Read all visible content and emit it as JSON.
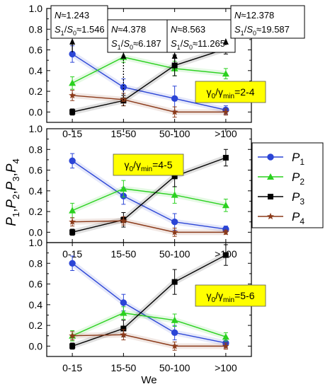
{
  "figure": {
    "ylabel": "P1,P2,P3,P4",
    "xlabel": "We",
    "background": "#ffffff"
  },
  "series_styles": [
    {
      "name": "P1",
      "color": "#2b45d6",
      "marker": "circle"
    },
    {
      "name": "P2",
      "color": "#2ad11f",
      "marker": "triangle"
    },
    {
      "name": "P3",
      "color": "#000000",
      "marker": "square"
    },
    {
      "name": "P4",
      "color": "#8b3a1a",
      "marker": "star"
    }
  ],
  "top_annotations": [
    {
      "category": "0-15",
      "N": "N≈1.243",
      "ratio": "S1/S0≈1.546"
    },
    {
      "category": "15-50",
      "N": "N≈4.378",
      "ratio": "S1/S0≈6.187"
    },
    {
      "category": "50-100",
      "N": "N≈8.563",
      "ratio": "S1/S0≈11.265"
    },
    {
      "category": ">100",
      "N": "N≈12.378",
      "ratio": "S1/S0≈19.587"
    }
  ],
  "chart_data": [
    {
      "type": "line",
      "categories": [
        "0-15",
        "15-50",
        "50-100",
        ">100"
      ],
      "ylim": [
        -0.1,
        1.0
      ],
      "yticks": [
        "0.0",
        "0.2",
        "0.4",
        "0.6",
        "0.8",
        "1.0"
      ],
      "annotation": "γ0/γmin=2-4",
      "annotation_color": "#ffff00",
      "series": [
        {
          "name": "P1",
          "values": [
            0.56,
            0.24,
            0.13,
            0.02
          ],
          "errors": [
            0.08,
            0.08,
            0.12,
            0.04
          ]
        },
        {
          "name": "P2",
          "values": [
            0.28,
            0.53,
            0.42,
            0.37
          ],
          "errors": [
            0.06,
            0.05,
            0.07,
            0.05
          ]
        },
        {
          "name": "P3",
          "values": [
            0.0,
            0.11,
            0.45,
            0.61
          ],
          "errors": [
            0.03,
            0.05,
            0.1,
            0.05
          ]
        },
        {
          "name": "P4",
          "values": [
            0.16,
            0.12,
            0.0,
            0.0
          ],
          "errors": [
            0.05,
            0.06,
            0.05,
            0.03
          ]
        }
      ]
    },
    {
      "type": "line",
      "categories": [
        "0-15",
        "15-50",
        "50-100",
        ">100"
      ],
      "ylim": [
        -0.1,
        1.0
      ],
      "yticks": [
        "0.0",
        "0.2",
        "0.4",
        "0.6",
        "0.8",
        "1.0"
      ],
      "annotation": "γ0/γmin=4-5",
      "annotation_color": "#ffff00",
      "series": [
        {
          "name": "P1",
          "values": [
            0.69,
            0.35,
            0.1,
            0.03
          ],
          "errors": [
            0.07,
            0.08,
            0.08,
            0.03
          ]
        },
        {
          "name": "P2",
          "values": [
            0.21,
            0.42,
            0.36,
            0.26
          ],
          "errors": [
            0.07,
            0.08,
            0.08,
            0.06
          ]
        },
        {
          "name": "P3",
          "values": [
            0.0,
            0.12,
            0.54,
            0.72
          ],
          "errors": [
            0.03,
            0.07,
            0.1,
            0.08
          ]
        },
        {
          "name": "P4",
          "values": [
            0.1,
            0.11,
            0.0,
            0.0
          ],
          "errors": [
            0.04,
            0.04,
            0.04,
            0.02
          ]
        }
      ]
    },
    {
      "type": "line",
      "categories": [
        "0-15",
        "15-50",
        "50-100",
        ">100"
      ],
      "ylim": [
        -0.1,
        1.0
      ],
      "yticks": [
        "0.0",
        "0.2",
        "0.4",
        "0.6",
        "0.8",
        "1.0"
      ],
      "annotation": "γ0/γmin=5-6",
      "annotation_color": "#ffff00",
      "series": [
        {
          "name": "P1",
          "values": [
            0.8,
            0.42,
            0.13,
            0.03
          ],
          "errors": [
            0.07,
            0.08,
            0.07,
            0.04
          ]
        },
        {
          "name": "P2",
          "values": [
            0.1,
            0.32,
            0.25,
            0.09
          ],
          "errors": [
            0.05,
            0.06,
            0.06,
            0.04
          ]
        },
        {
          "name": "P3",
          "values": [
            0.0,
            0.17,
            0.62,
            0.88
          ],
          "errors": [
            0.03,
            0.08,
            0.12,
            0.1
          ]
        },
        {
          "name": "P4",
          "values": [
            0.1,
            0.11,
            0.0,
            0.0
          ],
          "errors": [
            0.04,
            0.05,
            0.04,
            0.03
          ]
        }
      ]
    }
  ]
}
